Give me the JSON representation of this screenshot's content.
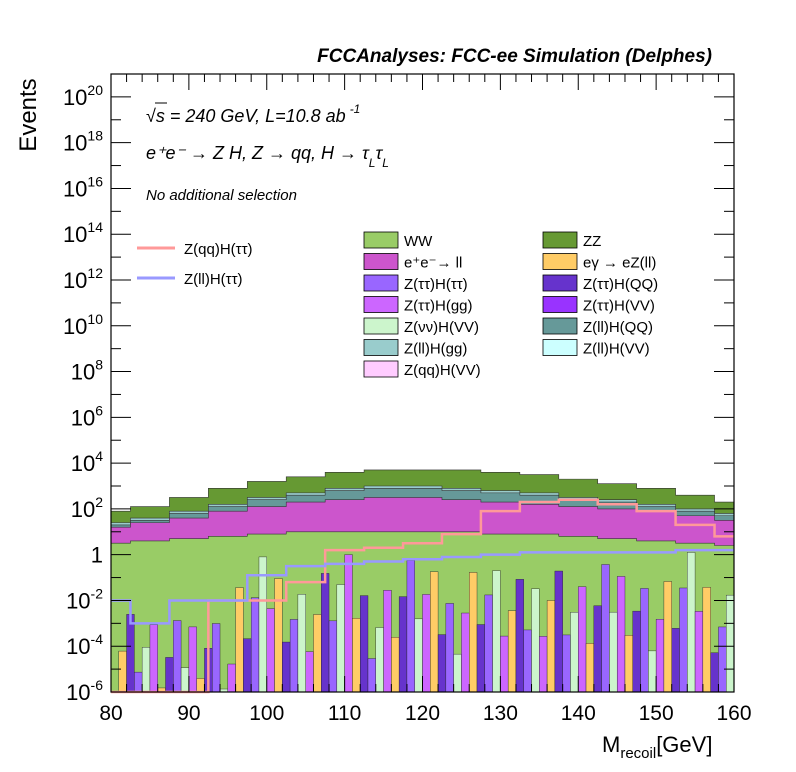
{
  "chart_data": {
    "type": "area",
    "title": "FCCAnalyses: FCC-ee Simulation (Delphes)",
    "xlabel_main": "M",
    "xlabel_sub": "recoil",
    "xlabel_unit": "[GeV]",
    "ylabel": "Events",
    "xlim": [
      80,
      160
    ],
    "ylim": [
      1e-06,
      1e+21
    ],
    "yscale": "log",
    "x_ticks": [
      "80",
      "90",
      "100",
      "110",
      "120",
      "130",
      "140",
      "150",
      "160"
    ],
    "y_ticks": [
      {
        "base": "10",
        "exp": "-6"
      },
      {
        "base": "10",
        "exp": "-4"
      },
      {
        "base": "10",
        "exp": "-2"
      },
      {
        "base": "1",
        "exp": ""
      },
      {
        "base": "10",
        "exp": "2"
      },
      {
        "base": "10",
        "exp": "4"
      },
      {
        "base": "10",
        "exp": "6"
      },
      {
        "base": "10",
        "exp": "8"
      },
      {
        "base": "10",
        "exp": "10"
      },
      {
        "base": "10",
        "exp": "12"
      },
      {
        "base": "10",
        "exp": "14"
      },
      {
        "base": "10",
        "exp": "16"
      },
      {
        "base": "10",
        "exp": "18"
      },
      {
        "base": "10",
        "exp": "20"
      }
    ],
    "annotations": {
      "energy": "√s = 240 GeV, L=10.8 ab",
      "energy_exp": "-1",
      "process": "e⁺e⁻ → Z H, Z → qq, H → τ",
      "process_sub1": "L",
      "process_tau2": "τ",
      "process_sub2": "L",
      "selection": "No additional selection"
    },
    "x": [
      80,
      85,
      90,
      95,
      100,
      105,
      110,
      115,
      120,
      125,
      130,
      135,
      140,
      145,
      150,
      155,
      160
    ],
    "stack": [
      {
        "name": "WW",
        "color": "#99cc66",
        "log10_top": [
          0.5,
          0.6,
          0.7,
          0.8,
          0.9,
          1.0,
          1.0,
          1.0,
          1.0,
          1.0,
          0.9,
          0.9,
          0.8,
          0.7,
          0.6,
          0.5,
          0.4
        ]
      },
      {
        "name": "e⁺e⁻→ ll",
        "color": "#cc55cc",
        "log10_top": [
          1.2,
          1.4,
          1.6,
          1.9,
          2.1,
          2.3,
          2.4,
          2.5,
          2.5,
          2.4,
          2.3,
          2.2,
          2.1,
          2.0,
          1.9,
          1.7,
          1.5
        ]
      },
      {
        "name": "Z(ll)H(QQ)",
        "color": "#669999",
        "log10_top": [
          1.3,
          1.5,
          1.8,
          2.1,
          2.4,
          2.6,
          2.8,
          2.9,
          2.9,
          2.8,
          2.7,
          2.6,
          2.4,
          2.3,
          2.1,
          1.9,
          1.7
        ]
      },
      {
        "name": "Z(ll)H(gg)",
        "color": "#99cccc",
        "log10_top": [
          1.4,
          1.6,
          1.9,
          2.2,
          2.5,
          2.7,
          2.9,
          3.0,
          3.0,
          2.9,
          2.8,
          2.7,
          2.5,
          2.4,
          2.2,
          2.0,
          1.8
        ]
      },
      {
        "name": "ZZ",
        "color": "#669933",
        "log10_top": [
          1.9,
          2.1,
          2.5,
          2.9,
          3.2,
          3.4,
          3.6,
          3.7,
          3.7,
          3.7,
          3.6,
          3.5,
          3.3,
          3.1,
          2.9,
          2.6,
          2.3
        ]
      }
    ],
    "lines": [
      {
        "name": "Z(qq)H(ττ)",
        "color": "#ff9999",
        "log10": [
          -6,
          -6,
          -6,
          -2,
          -2,
          -1.2,
          0.2,
          0.3,
          0.5,
          0.9,
          1.9,
          2.3,
          2.4,
          2.2,
          1.9,
          1.3,
          0.8
        ]
      },
      {
        "name": "Z(ll)H(ττ)",
        "color": "#9999ff",
        "log10": [
          -2,
          -3,
          -2,
          -2,
          -0.9,
          -0.5,
          -0.4,
          -0.3,
          -0.2,
          -0.1,
          0,
          0.1,
          0.1,
          0.1,
          0.1,
          0.2,
          0.2
        ]
      }
    ],
    "legend_lines": [
      {
        "label": "Z(qq)H(ττ)",
        "color": "#ff9999"
      },
      {
        "label": "Z(ll)H(ττ)",
        "color": "#9999ff"
      }
    ],
    "legend_col1": [
      {
        "label": "WW",
        "color": "#99cc66"
      },
      {
        "label": "e⁺e⁻→ ll",
        "color": "#cc55cc"
      },
      {
        "label": "Z(ττ)H(ττ)",
        "color": "#9966ff"
      },
      {
        "label": "Z(ττ)H(gg)",
        "color": "#cc66ff"
      },
      {
        "label": "Z(νν)H(VV)",
        "color": "#ccf5cc"
      },
      {
        "label": "Z(ll)H(gg)",
        "color": "#99cccc"
      },
      {
        "label": "Z(qq)H(VV)",
        "color": "#ffccff"
      }
    ],
    "legend_col2": [
      {
        "label": "ZZ",
        "color": "#669933"
      },
      {
        "label": "eγ → eZ(ll)",
        "color": "#ffcc66"
      },
      {
        "label": "Z(ττ)H(QQ)",
        "color": "#6633cc"
      },
      {
        "label": "Z(ττ)H(VV)",
        "color": "#9933ff"
      },
      {
        "label": "Z(ll)H(QQ)",
        "color": "#669999"
      },
      {
        "label": "Z(ll)H(VV)",
        "color": "#ccffff"
      }
    ]
  }
}
